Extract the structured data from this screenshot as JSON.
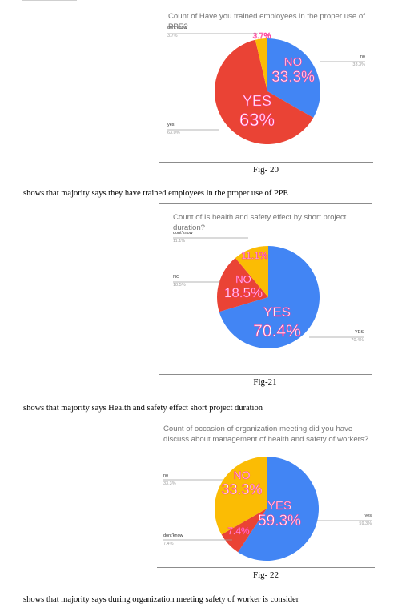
{
  "figures": [
    {
      "chart_data": {
        "type": "pie",
        "title": "Count of Have you trained employees in the proper use of PPE?",
        "slices": [
          {
            "label": "NO",
            "value": 33.3,
            "display": "33.3%",
            "color": "#4285f4"
          },
          {
            "label": "YES",
            "value": 63.0,
            "display": "63%",
            "color": "#ea4335"
          },
          {
            "label": "dont'know",
            "value": 3.7,
            "display": "3.7%",
            "color": "#fbbc04"
          }
        ],
        "callouts": [
          {
            "label": "dont'know",
            "pct": "3.7%"
          },
          {
            "label": "no",
            "pct": "33.3%"
          },
          {
            "label": "yes",
            "pct": "63.0%"
          }
        ]
      },
      "caption": "Fig- 20",
      "text": "shows that majority says they have trained employees in the proper use of PPE"
    },
    {
      "chart_data": {
        "type": "pie",
        "title": "Count of Is health and safety effect by short project duration?",
        "slices": [
          {
            "label": "YES",
            "value": 70.4,
            "display": "70.4%",
            "color": "#4285f4"
          },
          {
            "label": "NO",
            "value": 18.5,
            "display": "18.5%",
            "color": "#ea4335"
          },
          {
            "label": "dont'know",
            "value": 11.1,
            "display": "11.1%",
            "color": "#fbbc04"
          }
        ],
        "callouts": [
          {
            "label": "dont'know",
            "pct": "11.1%"
          },
          {
            "label": "NO",
            "pct": "18.5%"
          },
          {
            "label": "YES",
            "pct": "70.4%"
          }
        ]
      },
      "caption": "Fig-21",
      "text": "shows that majority says  Health and safety effect short project duration"
    },
    {
      "chart_data": {
        "type": "pie",
        "title": "Count of occasion of organization meeting did you have discuss about management of health and safety of workers?",
        "slices": [
          {
            "label": "YES",
            "value": 59.3,
            "display": "59.3%",
            "color": "#4285f4"
          },
          {
            "label": "",
            "value": 7.4,
            "display": "7.4%",
            "color": "#ea4335"
          },
          {
            "label": "NO",
            "value": 33.3,
            "display": "33.3%",
            "color": "#fbbc04"
          }
        ],
        "callouts": [
          {
            "label": "no",
            "pct": "33.3%"
          },
          {
            "label": "yes",
            "pct": "59.3%"
          },
          {
            "label": "dont'know",
            "pct": "7.4%"
          }
        ]
      },
      "caption": "Fig- 22",
      "text": "shows that majority says during organization meeting safety of worker is consider"
    }
  ]
}
